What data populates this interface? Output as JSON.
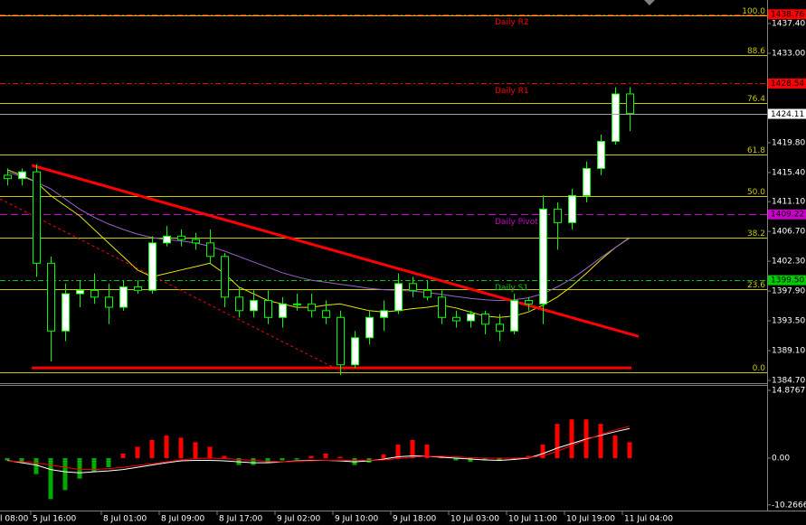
{
  "chart_data": [
    {
      "type": "candlestick",
      "xlim": [
        0,
        106.25
      ],
      "ylim": [
        1384.3,
        1440.87
      ],
      "yticks": [
        {
          "value": 1437.4,
          "label": "1437.40"
        },
        {
          "value": 1433.0,
          "label": "1433.00"
        },
        {
          "value": 1419.8,
          "label": "1419.80"
        },
        {
          "value": 1415.4,
          "label": "1415.40"
        },
        {
          "value": 1411.1,
          "label": "1411.10"
        },
        {
          "value": 1406.7,
          "label": "1406.70"
        },
        {
          "value": 1402.3,
          "label": "1402.30"
        },
        {
          "value": 1397.9,
          "label": "1397.90"
        },
        {
          "value": 1393.5,
          "label": "1393.50"
        },
        {
          "value": 1389.1,
          "label": "1389.10"
        },
        {
          "value": 1384.7,
          "label": "1384.70"
        }
      ],
      "up_color": "#ffffff",
      "down_color": "#000000",
      "wick_color": "#00ff00",
      "x": [
        1,
        3,
        5,
        7,
        9,
        11,
        13,
        15,
        17,
        19,
        21,
        23,
        25,
        27,
        29,
        31,
        33,
        35,
        37,
        39,
        41,
        43,
        45,
        47,
        49,
        51,
        53,
        55,
        57,
        59,
        61,
        63,
        65,
        67,
        69,
        71,
        73,
        75,
        77,
        79,
        81,
        83,
        85,
        87
      ],
      "open": [
        1415,
        1414.5,
        1415.5,
        1402,
        1392,
        1397.5,
        1398,
        1397,
        1395.5,
        1398.5,
        1398,
        1405,
        1406,
        1405.5,
        1405,
        1403,
        1397,
        1395,
        1396.5,
        1394,
        1396,
        1396,
        1395,
        1394,
        1387,
        1391,
        1394,
        1395,
        1399,
        1398,
        1397,
        1394,
        1393.5,
        1394.5,
        1393,
        1392,
        1396.5,
        1396,
        1410,
        1408,
        1412,
        1416,
        1420,
        1427
      ],
      "high": [
        1416,
        1416,
        1416.6,
        1403,
        1399,
        1399.5,
        1400.5,
        1399,
        1399.5,
        1399.5,
        1406,
        1407.5,
        1407,
        1406.5,
        1407,
        1403.5,
        1398.5,
        1398,
        1398,
        1397,
        1397.5,
        1397.5,
        1396.5,
        1395,
        1392,
        1395,
        1396.5,
        1400.5,
        1400,
        1399.5,
        1398,
        1395,
        1395,
        1395,
        1394.5,
        1397.5,
        1397,
        1412,
        1411,
        1413,
        1417,
        1421,
        1428,
        1428
      ],
      "low": [
        1413.5,
        1413.5,
        1400,
        1387.5,
        1390.5,
        1395.5,
        1396,
        1393,
        1395,
        1397.5,
        1397.5,
        1404.5,
        1404.5,
        1404,
        1402,
        1395.5,
        1394,
        1394,
        1393,
        1392.5,
        1395,
        1394,
        1393,
        1385.5,
        1386.5,
        1390,
        1392,
        1394.5,
        1397,
        1396.5,
        1393,
        1392.5,
        1392.5,
        1391.5,
        1390.5,
        1391.5,
        1395,
        1393,
        1404,
        1407,
        1411,
        1415,
        1419.5,
        1421.5
      ],
      "close": [
        1414.5,
        1415.5,
        1402,
        1392,
        1397.5,
        1398,
        1397,
        1395.5,
        1398.5,
        1398,
        1405,
        1406,
        1405.5,
        1405,
        1403,
        1397,
        1395,
        1396.5,
        1394,
        1396,
        1396,
        1395,
        1394,
        1387,
        1391,
        1394,
        1395,
        1399,
        1398,
        1397,
        1394,
        1393.5,
        1394.5,
        1393,
        1392,
        1396.5,
        1396,
        1410,
        1408,
        1412,
        1416,
        1420,
        1427,
        1424.11
      ],
      "moving_averages": [
        {
          "color": "#e6e600",
          "values": [
            1415.8,
            1415,
            1414,
            1412,
            1410.5,
            1409,
            1407,
            1405,
            1403,
            1401,
            1400,
            1400.5,
            1401,
            1401.5,
            1402,
            1400.5,
            1398.5,
            1397.5,
            1396.5,
            1396,
            1395.5,
            1395.5,
            1395.8,
            1396,
            1395.5,
            1395,
            1394.8,
            1395,
            1395.3,
            1395.5,
            1395.8,
            1395.4,
            1394.8,
            1394.2,
            1394,
            1394.2,
            1394.8,
            1395.8,
            1397,
            1398.6,
            1400.5,
            1402.5,
            1404.3,
            1405.8
          ]
        },
        {
          "color": "#9966cc",
          "values": [
            1415.5,
            1414.8,
            1414,
            1413,
            1411.5,
            1410,
            1408.8,
            1407.8,
            1407,
            1406.3,
            1405.8,
            1405.5,
            1405.3,
            1405,
            1404.5,
            1403.8,
            1403,
            1402.2,
            1401.4,
            1400.6,
            1400,
            1399.5,
            1399.2,
            1398.9,
            1398.6,
            1398.3,
            1398.1,
            1398,
            1397.9,
            1397.7,
            1397.4,
            1397.1,
            1396.8,
            1396.6,
            1396.5,
            1396.6,
            1396.9,
            1397.5,
            1398.5,
            1399.7,
            1401.2,
            1402.8,
            1404.3,
            1405.7
          ]
        }
      ],
      "fib_color": "#c8c800",
      "fib_levels": [
        {
          "label": "100.0",
          "value": 1438.6
        },
        {
          "label": "88.6",
          "value": 1432.73
        },
        {
          "label": "76.4",
          "value": 1425.66
        },
        {
          "label": "61.8",
          "value": 1418.05
        },
        {
          "label": "50.0",
          "value": 1411.92
        },
        {
          "label": "38.2",
          "value": 1405.78
        },
        {
          "label": "23.6",
          "value": 1398.17
        },
        {
          "label": "0.0",
          "value": 1385.9
        }
      ],
      "levels": [
        {
          "name": "Daily R2",
          "value": 1438.76,
          "value_label": "1438.76",
          "color": "#ff0000",
          "dash": "6 3 2 3"
        },
        {
          "name": "Daily R1",
          "value": 1428.54,
          "value_label": "1428.54",
          "color": "#ff0000",
          "dash": "6 3 2 3"
        },
        {
          "name": "Daily Pivot",
          "value": 1409.22,
          "value_label": "1409.22",
          "color": "#cc00cc",
          "dash": "8 4"
        },
        {
          "name": "Daily S1",
          "value": 1399.5,
          "value_label": "1399.50",
          "color": "#00cc00",
          "dash": "6 3 2 3"
        }
      ],
      "trendlines": [
        {
          "color": "#ff0000",
          "width": 3,
          "dashed": false,
          "x": [
            4.4,
            88.25
          ],
          "values": [
            1416.45,
            1391.2
          ]
        },
        {
          "color": "#ff0000",
          "width": 3,
          "dashed": false,
          "x": [
            4.4,
            87.25
          ],
          "values": [
            1386.56,
            1386.56
          ]
        },
        {
          "color": "#ff0000",
          "width": 1,
          "dashed": true,
          "x": [
            0,
            47.25
          ],
          "values": [
            1411.5,
            1386
          ]
        }
      ],
      "price_line": {
        "value": 1424.11,
        "color": "#a0a0a0"
      }
    },
    {
      "type": "macd",
      "xlim": [
        0,
        106.25
      ],
      "ylim": [
        -11.5,
        16.07
      ],
      "yticks": [
        14.8767,
        {
          "value": 0,
          "label": "0.00"
        },
        -10.2666
      ],
      "xticks": [
        {
          "value": -0.25,
          "label": "l 08:00"
        },
        {
          "value": 4.25,
          "label": "5 Jul 16:00"
        },
        {
          "value": 14,
          "label": "8 Jul 01:00"
        },
        {
          "value": 22,
          "label": "8 Jul 09:00"
        },
        {
          "value": 30,
          "label": "8 Jul 17:00"
        },
        {
          "value": 38,
          "label": "9 Jul 02:00"
        },
        {
          "value": 46,
          "label": "9 Jul 10:00"
        },
        {
          "value": 54,
          "label": "9 Jul 18:00"
        },
        {
          "value": 62,
          "label": "10 Jul 03:00"
        },
        {
          "value": 70,
          "label": "10 Jul 11:00"
        },
        {
          "value": 78,
          "label": "10 Jul 19:00"
        },
        {
          "value": 86,
          "label": "11 Jul 04:00"
        }
      ],
      "pos_color": "#ff0000",
      "neg_color": "#00aa00",
      "x": [
        1,
        3,
        5,
        7,
        9,
        11,
        13,
        15,
        17,
        19,
        21,
        23,
        25,
        27,
        29,
        31,
        33,
        35,
        37,
        39,
        41,
        43,
        45,
        47,
        49,
        51,
        53,
        55,
        57,
        59,
        61,
        63,
        65,
        67,
        69,
        71,
        73,
        75,
        77,
        79,
        81,
        83,
        85,
        87
      ],
      "values": [
        -0.5,
        -1,
        -3.5,
        -9,
        -7,
        -4.5,
        -3,
        -2,
        1,
        2.5,
        4,
        5,
        4.5,
        3.5,
        2.5,
        0.5,
        -1.5,
        -1.5,
        -1,
        -0.5,
        -0.3,
        0.5,
        1,
        0.3,
        -1.5,
        -1,
        0.8,
        3,
        4,
        3,
        0.5,
        -0.5,
        -0.8,
        -0.3,
        -0.6,
        -0.2,
        0.5,
        3,
        7.5,
        8.5,
        8.5,
        7.5,
        5,
        3.5
      ],
      "lines": [
        {
          "color": "#ffffff",
          "values": [
            -0.5,
            -1,
            -1.5,
            -2.5,
            -3,
            -3.2,
            -3,
            -2.8,
            -2.5,
            -2,
            -1.5,
            -1,
            -0.6,
            -0.5,
            -0.5,
            -0.6,
            -0.8,
            -1,
            -1,
            -0.8,
            -0.6,
            -0.5,
            -0.5,
            -0.6,
            -0.8,
            -0.6,
            -0.2,
            0.3,
            0.5,
            0.4,
            0.2,
            0,
            -0.2,
            -0.4,
            -0.5,
            -0.3,
            0,
            1,
            2.2,
            3.2,
            4.2,
            5,
            5.8,
            6.5
          ]
        },
        {
          "color": "#ff0000",
          "values": [
            -0.6,
            -0.8,
            -1,
            -1.5,
            -2,
            -2.5,
            -2.5,
            -2.3,
            -2,
            -1.6,
            -1.2,
            -0.8,
            -0.4,
            -0.1,
            0,
            -0.1,
            -0.3,
            -0.5,
            -0.7,
            -0.8,
            -0.7,
            -0.6,
            -0.5,
            -0.5,
            -0.5,
            -0.5,
            -0.4,
            -0.1,
            0.2,
            0.4,
            0.4,
            0.3,
            0.1,
            0,
            0,
            0,
            0.1,
            0.5,
            1.5,
            2.8,
            4,
            5.2,
            6.2,
            7
          ]
        }
      ]
    }
  ]
}
